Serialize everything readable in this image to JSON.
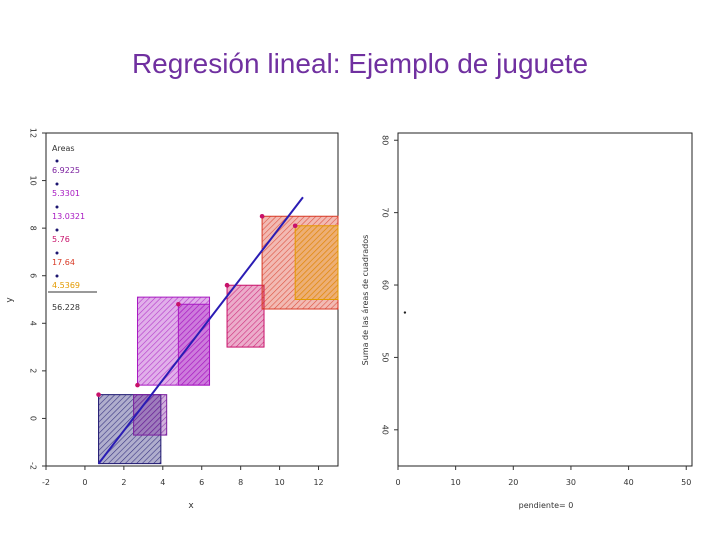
{
  "slide": {
    "title": "Regresión lineal: Ejemplo de juguete"
  },
  "colors": {
    "title": "#7030a0",
    "fit_line": "#2a1cb4",
    "purple": "#7a1f9e",
    "magenta": "#a81ac2",
    "pink": "#c8116a",
    "red": "#d83a26",
    "orange": "#e39a00",
    "navy": "#1d1670"
  },
  "chart_data": [
    {
      "type": "scatter",
      "title": "",
      "xlabel": "x",
      "ylabel": "y",
      "xlim": [
        -2,
        13
      ],
      "ylim": [
        -2,
        12
      ],
      "x_ticks": [
        "-2",
        "0",
        "2",
        "4",
        "6",
        "8",
        "10",
        "12"
      ],
      "y_ticks": [
        "-2",
        "0",
        "2",
        "4",
        "6",
        "8",
        "10",
        "12"
      ],
      "points": [
        {
          "x": 0.7,
          "y": 1.0
        },
        {
          "x": 2.7,
          "y": 1.4
        },
        {
          "x": 4.8,
          "y": 4.8
        },
        {
          "x": 7.3,
          "y": 5.6
        },
        {
          "x": 9.1,
          "y": 8.5
        },
        {
          "x": 10.8,
          "y": 8.1
        }
      ],
      "fit_line": {
        "x": [
          0.7,
          11.2
        ],
        "y": [
          -1.9,
          9.3
        ]
      },
      "residual_squares": [
        {
          "x0": 0.7,
          "x1": 3.9,
          "y0": -1.9,
          "y1": 1.0,
          "color": "navy"
        },
        {
          "x0": 2.7,
          "x1": 6.4,
          "y0": 1.4,
          "y1": 5.1,
          "color": "magenta"
        },
        {
          "x0": 2.5,
          "x1": 4.2,
          "y0": -0.7,
          "y1": 1.0,
          "color": "purple"
        },
        {
          "x0": 4.8,
          "x1": 6.4,
          "y0": 1.4,
          "y1": 4.8,
          "color": "magenta"
        },
        {
          "x0": 7.3,
          "x1": 9.2,
          "y0": 3.0,
          "y1": 5.6,
          "color": "pink"
        },
        {
          "x0": 9.1,
          "x1": 13.2,
          "y0": 4.6,
          "y1": 8.5,
          "color": "red"
        },
        {
          "x0": 10.8,
          "x1": 13.2,
          "y0": 5.0,
          "y1": 8.1,
          "color": "orange"
        }
      ],
      "legend": {
        "position": "top-left",
        "title": "Areas",
        "entries": [
          {
            "label": "6.9225",
            "color": "purple"
          },
          {
            "label": "5.3301",
            "color": "magenta"
          },
          {
            "label": "13.0321",
            "color": "magenta"
          },
          {
            "label": "5.76",
            "color": "pink"
          },
          {
            "label": "17.64",
            "color": "red"
          },
          {
            "label": "4.5369",
            "color": "orange"
          }
        ],
        "total": "56.228"
      }
    },
    {
      "type": "scatter",
      "title": "",
      "xlabel": "pendiente= 0",
      "ylabel": "Suma de las áreas de cuadrados",
      "xlim": [
        0,
        51
      ],
      "ylim": [
        35,
        81
      ],
      "x_ticks": [
        "0",
        "10",
        "20",
        "30",
        "40",
        "50"
      ],
      "y_ticks": [
        "40",
        "50",
        "60",
        "70",
        "80"
      ],
      "points": [
        {
          "x": 1.2,
          "y": 56.2
        }
      ]
    }
  ]
}
